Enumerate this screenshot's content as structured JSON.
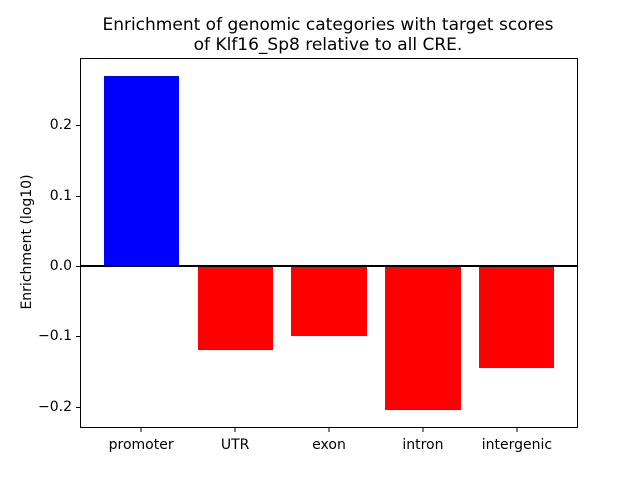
{
  "chart_data": {
    "type": "bar",
    "title": "Enrichment of genomic categories with target scores\nof Klf16_Sp8 relative to all CRE.",
    "xlabel": "",
    "ylabel": "Enrichment (log10)",
    "categories": [
      "promoter",
      "UTR",
      "exon",
      "intron",
      "intergenic"
    ],
    "values": [
      0.27,
      -0.12,
      -0.1,
      -0.205,
      -0.145
    ],
    "bar_colors": [
      "#0000ff",
      "#ff0000",
      "#ff0000",
      "#ff0000",
      "#ff0000"
    ],
    "positive_color": "#0000ff",
    "negative_color": "#ff0000",
    "ylim": [
      -0.229,
      0.294
    ],
    "xlim": [
      -0.64,
      4.64
    ],
    "yticks": [
      0.2,
      0.1,
      0.0,
      -0.1,
      -0.2
    ],
    "ytick_labels": [
      "0.2",
      "0.1",
      "0.0",
      "−0.1",
      "−0.2"
    ],
    "bar_width": 0.8,
    "zero_line": true,
    "grid": false,
    "legend": null
  }
}
